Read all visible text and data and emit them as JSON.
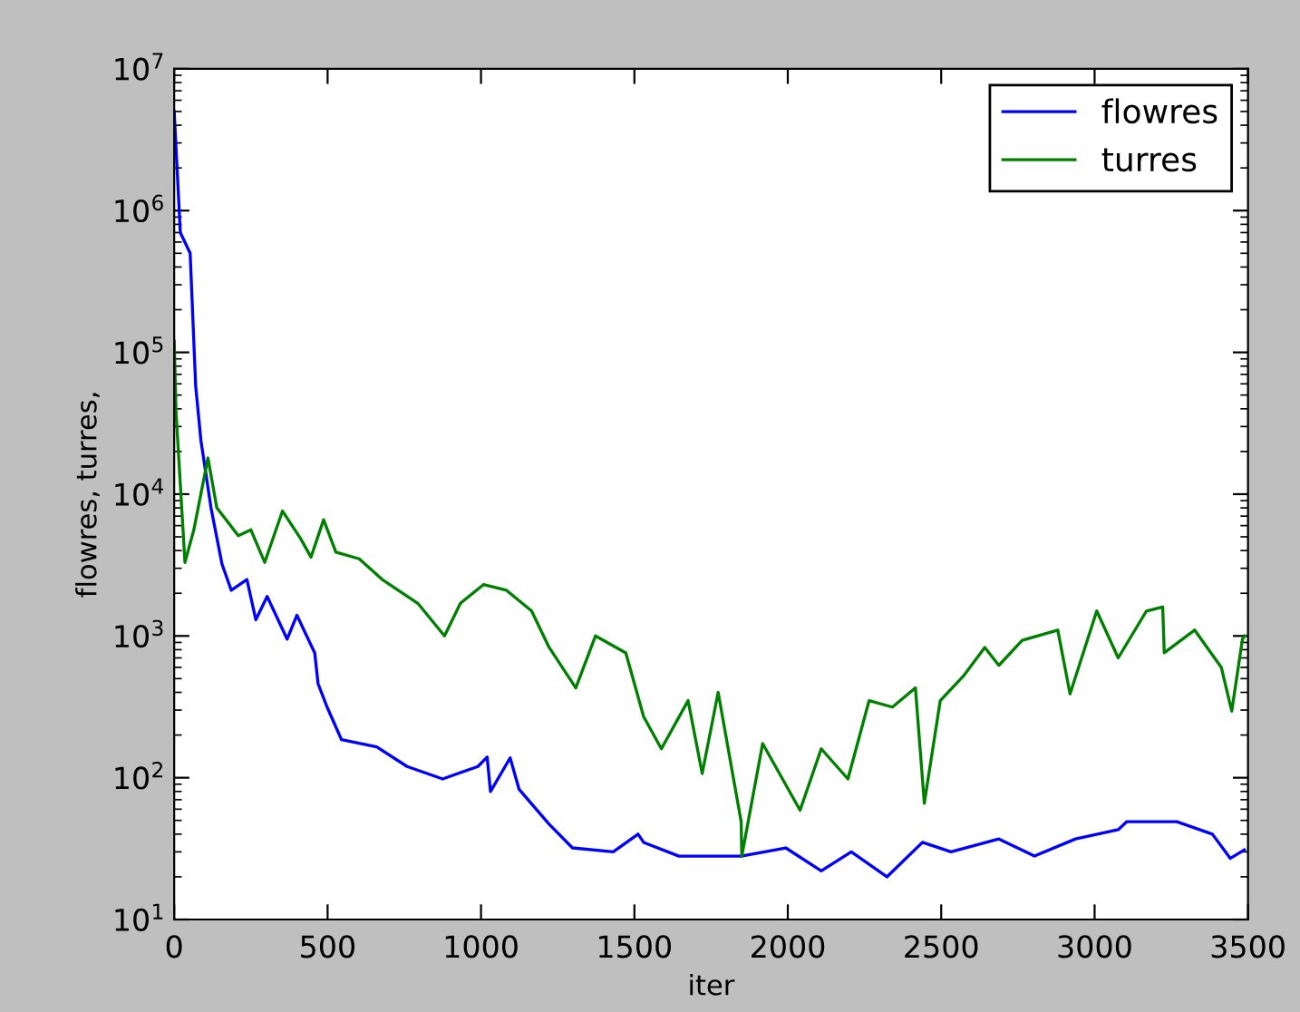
{
  "chart_data": {
    "type": "line",
    "xlabel": "iter",
    "ylabel": "flowres, turres,",
    "log": "y",
    "legend": "top right",
    "grid": false,
    "xlim": [
      0,
      3500
    ],
    "xticks": [
      0,
      500,
      1000,
      1500,
      2000,
      2500,
      3000,
      3500
    ],
    "ylim": [
      10,
      10000000
    ],
    "yticks": [
      {
        "value": 10,
        "label": "10$^{1}$"
      },
      {
        "value": 100,
        "label": "10$^{2}$"
      },
      {
        "value": 1000,
        "label": "10$^{3}$"
      },
      {
        "value": 10000,
        "label": "10$^{4}$"
      },
      {
        "value": 100000,
        "label": "10$^{5}$"
      },
      {
        "value": 1000000,
        "label": "10$^{6}$"
      },
      {
        "value": 10000000,
        "label": "10$^{7}$"
      }
    ],
    "series": [
      {
        "name": "flowres",
        "color": "#0000ff",
        "x": [
          0,
          20,
          52,
          70,
          87,
          120,
          156,
          186,
          237,
          266,
          303,
          368,
          400,
          458,
          469,
          498,
          545,
          660,
          759,
          875,
          990,
          1020,
          1031,
          1095,
          1124,
          1222,
          1298,
          1431,
          1512,
          1530,
          1645,
          1848,
          1993,
          2109,
          2207,
          2323,
          2439,
          2532,
          2688,
          2804,
          2938,
          3077,
          3105,
          3268,
          3384,
          3442,
          3488
        ],
        "values": [
          5000000,
          700000,
          500000,
          58000,
          24000,
          8000,
          3200,
          2100,
          2500,
          1300,
          1900,
          950,
          1400,
          760,
          460,
          316,
          186,
          165,
          120,
          98,
          120,
          140,
          80,
          138,
          83,
          47,
          32,
          30,
          40,
          35,
          28,
          28,
          32,
          22,
          30,
          20,
          35,
          30,
          37,
          28,
          37,
          43,
          49,
          49,
          40,
          27,
          31
        ]
      },
      {
        "name": "turres",
        "color": "#008000",
        "x": [
          0,
          6,
          35,
          64,
          110,
          139,
          209,
          250,
          295,
          353,
          411,
          446,
          487,
          527,
          603,
          678,
          794,
          881,
          933,
          1008,
          1083,
          1165,
          1222,
          1309,
          1373,
          1472,
          1530,
          1588,
          1675,
          1721,
          1773,
          1848,
          1850,
          1918,
          2040,
          2109,
          2196,
          2265,
          2341,
          2416,
          2445,
          2497,
          2572,
          2642,
          2688,
          2764,
          2880,
          2920,
          3007,
          3077,
          3169,
          3222,
          3227,
          3326,
          3413,
          3447,
          3482,
          3490
        ],
        "values": [
          120000,
          38000,
          3300,
          5600,
          18000,
          8000,
          5100,
          5600,
          3300,
          7600,
          4900,
          3600,
          6600,
          3900,
          3500,
          2500,
          1700,
          1000,
          1700,
          2300,
          2100,
          1500,
          830,
          430,
          1000,
          760,
          270,
          160,
          350,
          107,
          400,
          49,
          28,
          174,
          59,
          160,
          98,
          350,
          315,
          430,
          66,
          350,
          520,
          830,
          620,
          930,
          1100,
          390,
          1500,
          700,
          1500,
          1600,
          760,
          1100,
          600,
          295,
          950,
          1000
        ]
      }
    ]
  }
}
